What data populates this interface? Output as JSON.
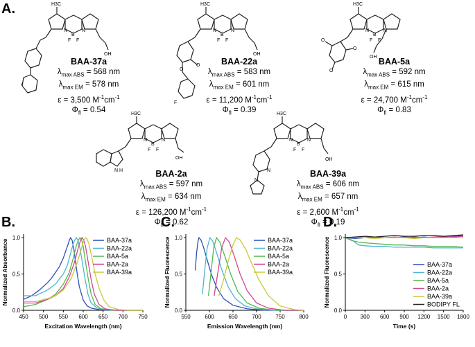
{
  "panel_labels": {
    "a": "A.",
    "b": "B.",
    "c": "C.",
    "d": "D."
  },
  "compounds": [
    {
      "name": "BAA-37a",
      "abs": "568",
      "em": "578",
      "eps": "3,500",
      "phi": "0.54"
    },
    {
      "name": "BAA-22a",
      "abs": "583",
      "em": "601",
      "eps": "11,200",
      "phi": "0.39"
    },
    {
      "name": "BAA-5a",
      "abs": "592",
      "em": "615",
      "eps": "24,700",
      "phi": "0.83"
    },
    {
      "name": "BAA-2a",
      "abs": "597",
      "em": "634",
      "eps": "126,200",
      "phi": "0.62"
    },
    {
      "name": "BAA-39a",
      "abs": "606",
      "em": "657",
      "eps": "2,600",
      "phi": "0.19"
    }
  ],
  "labels": {
    "lambda": "λ",
    "max_abs": "max ABS",
    "max_em": "max EM",
    "nm": "nm",
    "eps": "ε",
    "eps_unit_m": "M",
    "eps_unit_sup1": "-1",
    "eps_unit_cm": "cm",
    "eps_unit_sup2": "-1",
    "phi": "Φ",
    "phi_sub": "fl",
    "eq": "="
  },
  "structure_atoms": {
    "ch3": "H3C",
    "n": "N",
    "b": "B",
    "f": "F",
    "oh": "OH",
    "o": "O",
    "nh": "N H",
    "meo": "O"
  },
  "colors": {
    "BAA-37a": "#2b4fb8",
    "BAA-22a": "#4fb3d3",
    "BAA-5a": "#4fb94f",
    "BAA-2a": "#d2458f",
    "BAA-39a": "#c9c93a",
    "BODIPY FL": "#222222"
  },
  "chart_data": [
    {
      "type": "line",
      "panel": "B.",
      "xlabel": "Excitation Wavelength (nm)",
      "ylabel": "Normalized Absorbance",
      "xlim": [
        450,
        750
      ],
      "ylim": [
        0,
        1.05
      ],
      "xticks": [
        "450",
        "500",
        "550",
        "600",
        "650",
        "700",
        "750"
      ],
      "yticks": [
        "0.0",
        "0.5",
        "1.0"
      ],
      "legend": "top-right",
      "series": [
        {
          "name": "BAA-37a",
          "x": [
            450,
            470,
            490,
            510,
            520,
            530,
            540,
            550,
            555,
            560,
            565,
            568,
            572,
            576,
            580,
            585,
            590,
            600,
            610,
            620,
            640,
            660,
            700,
            750
          ],
          "y": [
            0.15,
            0.2,
            0.28,
            0.38,
            0.44,
            0.52,
            0.6,
            0.72,
            0.8,
            0.88,
            0.96,
            1.0,
            0.97,
            0.86,
            0.7,
            0.5,
            0.33,
            0.14,
            0.06,
            0.03,
            0.01,
            0.0,
            0.0,
            0.0
          ]
        },
        {
          "name": "BAA-22a",
          "x": [
            450,
            480,
            510,
            530,
            550,
            560,
            570,
            575,
            580,
            583,
            587,
            592,
            598,
            605,
            612,
            620,
            635,
            660,
            700,
            750
          ],
          "y": [
            0.2,
            0.2,
            0.28,
            0.36,
            0.5,
            0.62,
            0.82,
            0.92,
            0.98,
            1.0,
            0.96,
            0.85,
            0.65,
            0.42,
            0.22,
            0.1,
            0.03,
            0.01,
            0.0,
            0.0
          ]
        },
        {
          "name": "BAA-5a",
          "x": [
            450,
            480,
            510,
            530,
            550,
            565,
            575,
            582,
            588,
            592,
            596,
            600,
            606,
            613,
            620,
            630,
            645,
            670,
            700,
            750
          ],
          "y": [
            0.05,
            0.08,
            0.15,
            0.22,
            0.36,
            0.52,
            0.72,
            0.88,
            0.97,
            1.0,
            0.97,
            0.88,
            0.66,
            0.42,
            0.22,
            0.08,
            0.02,
            0.0,
            0.0,
            0.0
          ]
        },
        {
          "name": "BAA-2a",
          "x": [
            450,
            480,
            510,
            530,
            550,
            565,
            578,
            587,
            593,
            597,
            601,
            606,
            612,
            620,
            628,
            640,
            655,
            680,
            700,
            750
          ],
          "y": [
            0.1,
            0.1,
            0.15,
            0.2,
            0.3,
            0.46,
            0.66,
            0.85,
            0.96,
            1.0,
            0.97,
            0.88,
            0.68,
            0.42,
            0.22,
            0.08,
            0.02,
            0.0,
            0.0,
            0.0
          ]
        },
        {
          "name": "BAA-39a",
          "x": [
            450,
            480,
            510,
            530,
            550,
            570,
            585,
            595,
            601,
            606,
            610,
            615,
            622,
            630,
            640,
            652,
            665,
            690,
            720,
            750
          ],
          "y": [
            0.12,
            0.12,
            0.16,
            0.2,
            0.28,
            0.44,
            0.66,
            0.84,
            0.96,
            1.0,
            0.98,
            0.9,
            0.72,
            0.5,
            0.3,
            0.14,
            0.05,
            0.01,
            0.0,
            0.0
          ]
        }
      ]
    },
    {
      "type": "line",
      "panel": "C.",
      "xlabel": "Emission Wavelength (nm)",
      "ylabel": "Normalized Fluorescence",
      "xlim": [
        550,
        800
      ],
      "ylim": [
        0,
        1.05
      ],
      "xticks": [
        "550",
        "600",
        "650",
        "700",
        "750",
        "800"
      ],
      "yticks": [
        "0.0",
        "0.5",
        "1.0"
      ],
      "legend": "top-right",
      "series": [
        {
          "name": "BAA-37a",
          "x": [
            570,
            573,
            576,
            578,
            582,
            588,
            595,
            605,
            615,
            630,
            650,
            680,
            720,
            760,
            800
          ],
          "y": [
            0.55,
            0.8,
            0.96,
            1.0,
            0.97,
            0.86,
            0.7,
            0.48,
            0.32,
            0.16,
            0.07,
            0.02,
            0.0,
            0.0,
            0.0
          ]
        },
        {
          "name": "BAA-22a",
          "x": [
            585,
            590,
            595,
            601,
            607,
            615,
            625,
            640,
            655,
            675,
            700,
            740,
            800
          ],
          "y": [
            0.22,
            0.55,
            0.85,
            1.0,
            0.95,
            0.8,
            0.58,
            0.32,
            0.16,
            0.06,
            0.02,
            0.0,
            0.0
          ]
        },
        {
          "name": "BAA-5a",
          "x": [
            598,
            604,
            609,
            615,
            622,
            632,
            645,
            660,
            680,
            705,
            740,
            800
          ],
          "y": [
            0.2,
            0.55,
            0.86,
            1.0,
            0.94,
            0.76,
            0.5,
            0.26,
            0.1,
            0.03,
            0.0,
            0.0
          ]
        },
        {
          "name": "BAA-2a",
          "x": [
            610,
            618,
            626,
            634,
            642,
            652,
            665,
            680,
            700,
            725,
            760,
            800
          ],
          "y": [
            0.2,
            0.52,
            0.86,
            1.0,
            0.94,
            0.76,
            0.5,
            0.27,
            0.1,
            0.03,
            0.0,
            0.0
          ]
        },
        {
          "name": "BAA-39a",
          "x": [
            620,
            630,
            640,
            650,
            657,
            665,
            677,
            690,
            705,
            725,
            750,
            780,
            800
          ],
          "y": [
            0.2,
            0.42,
            0.68,
            0.9,
            1.0,
            0.97,
            0.84,
            0.64,
            0.42,
            0.2,
            0.06,
            0.01,
            0.0
          ]
        }
      ]
    },
    {
      "type": "line",
      "panel": "D.",
      "xlabel": "Time (s)",
      "ylabel": "Normalized Fluorescence",
      "xlim": [
        0,
        1800
      ],
      "ylim": [
        0,
        1.05
      ],
      "xticks": [
        "0",
        "300",
        "600",
        "900",
        "1200",
        "1500",
        "1800"
      ],
      "yticks": [
        "0.0",
        "0.5",
        "1.0"
      ],
      "legend": "bottom-right",
      "series": [
        {
          "name": "BAA-37a",
          "x": [
            0,
            150,
            300,
            450,
            600,
            750,
            900,
            1050,
            1200,
            1350,
            1500,
            1650,
            1800
          ],
          "y": [
            1.0,
            0.99,
            1.0,
            1.01,
            1.0,
            1.0,
            1.01,
            1.0,
            1.01,
            1.0,
            1.01,
            1.02,
            1.03
          ]
        },
        {
          "name": "BAA-22a",
          "x": [
            0,
            100,
            200,
            300,
            450,
            600,
            750,
            900,
            1050,
            1200,
            1350,
            1500,
            1650,
            1800
          ],
          "y": [
            1.0,
            0.97,
            0.9,
            0.89,
            0.88,
            0.88,
            0.87,
            0.87,
            0.87,
            0.87,
            0.86,
            0.86,
            0.86,
            0.86
          ]
        },
        {
          "name": "BAA-5a",
          "x": [
            0,
            100,
            200,
            300,
            450,
            600,
            750,
            900,
            1050,
            1200,
            1350,
            1500,
            1650,
            1800
          ],
          "y": [
            1.0,
            0.96,
            0.94,
            0.93,
            0.92,
            0.91,
            0.9,
            0.9,
            0.89,
            0.89,
            0.88,
            0.88,
            0.88,
            0.87
          ]
        },
        {
          "name": "BAA-2a",
          "x": [
            0,
            150,
            300,
            450,
            600,
            750,
            900,
            1050,
            1200,
            1350,
            1500,
            1650,
            1800
          ],
          "y": [
            1.0,
            1.01,
            1.0,
            1.01,
            1.0,
            1.01,
            1.0,
            1.01,
            1.0,
            1.01,
            1.02,
            1.01,
            1.02
          ]
        },
        {
          "name": "BAA-39a",
          "x": [
            0,
            150,
            300,
            450,
            600,
            750,
            900,
            1050,
            1200,
            1350,
            1500,
            1650,
            1800
          ],
          "y": [
            1.0,
            1.0,
            1.0,
            0.99,
            1.0,
            1.0,
            1.0,
            0.99,
            1.0,
            1.0,
            1.0,
            1.0,
            1.0
          ]
        },
        {
          "name": "BODIPY FL",
          "x": [
            0,
            150,
            300,
            450,
            600,
            750,
            900,
            1050,
            1200,
            1350,
            1500,
            1650,
            1800
          ],
          "y": [
            1.0,
            1.01,
            1.02,
            1.01,
            1.02,
            1.03,
            1.02,
            1.02,
            1.03,
            1.03,
            1.02,
            1.03,
            1.04
          ]
        }
      ]
    }
  ]
}
